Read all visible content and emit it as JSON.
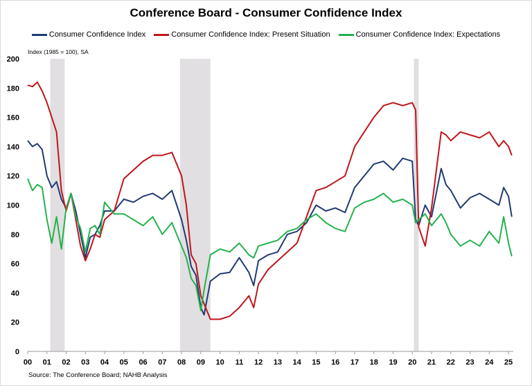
{
  "chart_data": {
    "type": "line",
    "title": "Conference Board - Consumer Confidence Index",
    "ylabel": "Index (1985 = 100), SA",
    "source": "Source: The Conference Board; NAHB Analysis",
    "ylim": [
      0,
      200
    ],
    "yticks": [
      0,
      20,
      40,
      60,
      80,
      100,
      120,
      140,
      160,
      180,
      200
    ],
    "xlim": [
      2000.0,
      2025.25
    ],
    "xticks": [
      "00",
      "01",
      "02",
      "03",
      "04",
      "05",
      "06",
      "07",
      "08",
      "09",
      "10",
      "11",
      "12",
      "13",
      "14",
      "15",
      "16",
      "17",
      "18",
      "19",
      "20",
      "21",
      "22",
      "23",
      "24",
      "25"
    ],
    "grid": false,
    "legend_position": "top",
    "recessions": [
      [
        2001.17,
        2001.92
      ],
      [
        2007.92,
        2009.5
      ],
      [
        2020.08,
        2020.33
      ]
    ],
    "series": [
      {
        "name": "Consumer Confidence Index",
        "color": "#1f3a73",
        "x": [
          2000.0,
          2000.25,
          2000.5,
          2000.75,
          2001.0,
          2001.25,
          2001.5,
          2001.75,
          2002.0,
          2002.25,
          2002.5,
          2002.75,
          2003.0,
          2003.25,
          2003.5,
          2003.75,
          2004.0,
          2004.5,
          2005.0,
          2005.5,
          2006.0,
          2006.5,
          2007.0,
          2007.5,
          2008.0,
          2008.25,
          2008.5,
          2008.75,
          2009.0,
          2009.17,
          2009.5,
          2010.0,
          2010.5,
          2011.0,
          2011.5,
          2011.75,
          2012.0,
          2012.5,
          2013.0,
          2013.5,
          2014.0,
          2014.5,
          2015.0,
          2015.5,
          2016.0,
          2016.5,
          2017.0,
          2017.5,
          2018.0,
          2018.5,
          2019.0,
          2019.5,
          2020.0,
          2020.17,
          2020.33,
          2020.67,
          2021.0,
          2021.5,
          2021.75,
          2022.0,
          2022.5,
          2023.0,
          2023.5,
          2024.0,
          2024.5,
          2024.75,
          2025.0,
          2025.17
        ],
        "values": [
          144,
          140,
          142,
          138,
          120,
          112,
          116,
          104,
          98,
          108,
          96,
          80,
          64,
          78,
          80,
          86,
          96,
          96,
          104,
          102,
          106,
          108,
          104,
          110,
          90,
          76,
          58,
          52,
          30,
          25,
          48,
          53,
          54,
          64,
          54,
          45,
          62,
          66,
          68,
          80,
          82,
          88,
          100,
          96,
          98,
          95,
          112,
          120,
          128,
          130,
          124,
          132,
          130,
          90,
          86,
          100,
          92,
          125,
          114,
          110,
          98,
          105,
          108,
          104,
          100,
          112,
          106,
          92
        ]
      },
      {
        "name": "Consumer Confidence Index: Present Situation",
        "color": "#c0141b",
        "x": [
          2000.0,
          2000.25,
          2000.5,
          2000.75,
          2001.0,
          2001.25,
          2001.5,
          2001.75,
          2002.0,
          2002.25,
          2002.5,
          2002.75,
          2003.0,
          2003.25,
          2003.5,
          2003.75,
          2004.0,
          2004.5,
          2005.0,
          2005.5,
          2006.0,
          2006.5,
          2007.0,
          2007.5,
          2008.0,
          2008.25,
          2008.5,
          2008.75,
          2009.0,
          2009.5,
          2010.0,
          2010.5,
          2011.0,
          2011.5,
          2011.75,
          2012.0,
          2012.5,
          2013.0,
          2013.5,
          2014.0,
          2014.5,
          2015.0,
          2015.5,
          2016.0,
          2016.5,
          2017.0,
          2017.5,
          2018.0,
          2018.5,
          2019.0,
          2019.5,
          2020.0,
          2020.17,
          2020.33,
          2020.67,
          2021.0,
          2021.5,
          2021.75,
          2022.0,
          2022.5,
          2023.0,
          2023.5,
          2024.0,
          2024.5,
          2024.75,
          2025.0,
          2025.17
        ],
        "values": [
          182,
          181,
          184,
          178,
          170,
          160,
          150,
          110,
          96,
          108,
          90,
          72,
          62,
          70,
          80,
          78,
          90,
          96,
          118,
          124,
          130,
          134,
          134,
          136,
          120,
          100,
          66,
          60,
          38,
          22,
          22,
          24,
          30,
          38,
          30,
          46,
          56,
          62,
          68,
          74,
          92,
          110,
          112,
          116,
          120,
          140,
          150,
          160,
          168,
          170,
          168,
          170,
          165,
          85,
          72,
          98,
          150,
          148,
          144,
          150,
          148,
          146,
          150,
          140,
          144,
          140,
          134
        ]
      },
      {
        "name": "Consumer Confidence Index: Expectations",
        "color": "#22b24c",
        "x": [
          2000.0,
          2000.25,
          2000.5,
          2000.75,
          2001.0,
          2001.25,
          2001.5,
          2001.75,
          2002.0,
          2002.25,
          2002.5,
          2002.75,
          2003.0,
          2003.25,
          2003.5,
          2003.75,
          2004.0,
          2004.5,
          2005.0,
          2005.5,
          2006.0,
          2006.5,
          2007.0,
          2007.5,
          2008.0,
          2008.25,
          2008.5,
          2008.75,
          2009.0,
          2009.17,
          2009.5,
          2010.0,
          2010.5,
          2011.0,
          2011.5,
          2011.75,
          2012.0,
          2012.5,
          2013.0,
          2013.5,
          2014.0,
          2014.5,
          2015.0,
          2015.5,
          2016.0,
          2016.5,
          2017.0,
          2017.5,
          2018.0,
          2018.5,
          2019.0,
          2019.5,
          2020.0,
          2020.17,
          2020.33,
          2020.67,
          2021.0,
          2021.5,
          2021.75,
          2022.0,
          2022.5,
          2023.0,
          2023.5,
          2024.0,
          2024.5,
          2024.75,
          2025.0,
          2025.17
        ],
        "values": [
          118,
          110,
          114,
          112,
          90,
          74,
          92,
          70,
          98,
          108,
          92,
          84,
          68,
          84,
          86,
          80,
          102,
          94,
          94,
          90,
          86,
          92,
          80,
          88,
          72,
          64,
          50,
          45,
          28,
          42,
          66,
          70,
          68,
          74,
          66,
          64,
          72,
          74,
          76,
          82,
          84,
          90,
          94,
          88,
          84,
          82,
          98,
          102,
          104,
          108,
          102,
          104,
          100,
          88,
          90,
          94,
          86,
          94,
          88,
          80,
          72,
          76,
          72,
          82,
          74,
          92,
          74,
          65
        ]
      }
    ]
  }
}
